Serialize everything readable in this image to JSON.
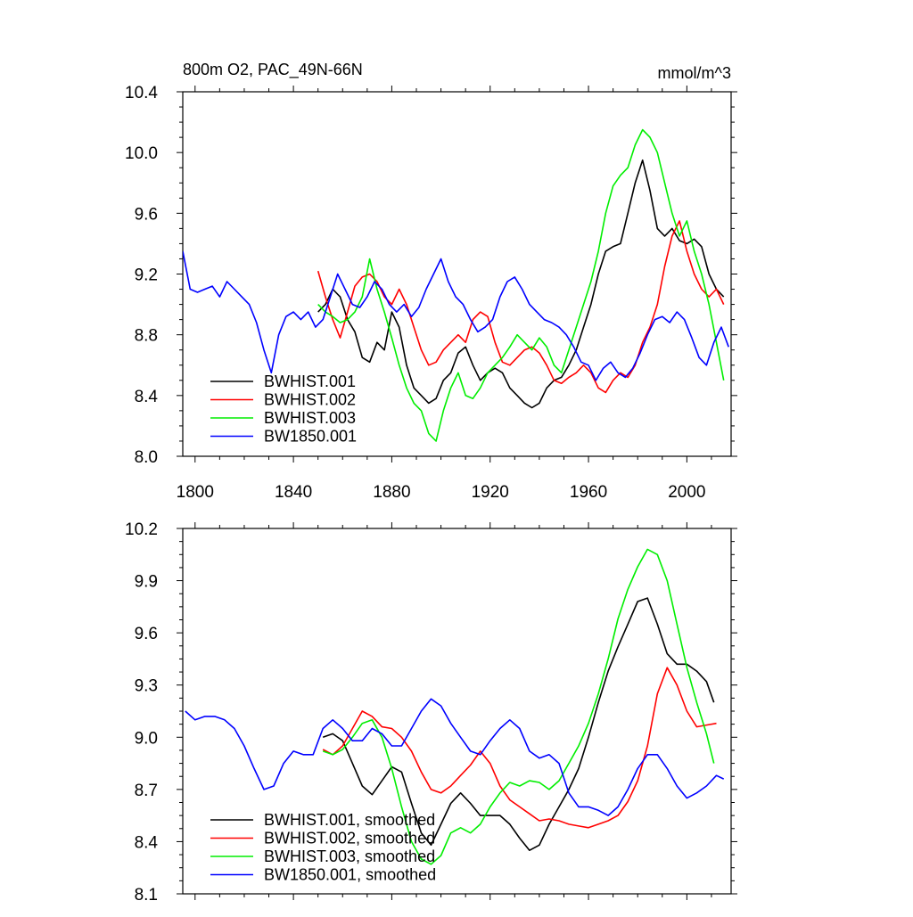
{
  "colors": {
    "BWHIST.001": "#000000",
    "BWHIST.002": "#ff0000",
    "BWHIST.003": "#00ee00",
    "BW1850.001": "#0000ff"
  },
  "chart_data": [
    {
      "type": "line",
      "title": "800m O2, PAC_49N-66N",
      "units": "mmol/m^3",
      "xlim": [
        1795,
        2018
      ],
      "ylim": [
        8.0,
        10.4
      ],
      "xticks": [
        1800,
        1840,
        1880,
        1920,
        1960,
        2000
      ],
      "xtick_labels": [
        "1800",
        "1840",
        "1880",
        "1920",
        "1960",
        "2000"
      ],
      "yticks": [
        8.0,
        8.4,
        8.8,
        9.2,
        9.6,
        10.0,
        10.4
      ],
      "ytick_labels": [
        "8.0",
        "8.4",
        "8.8",
        "9.2",
        "9.6",
        "10.0",
        "10.4"
      ],
      "legend_position": "bottom-left",
      "series": [
        {
          "name": "BWHIST.001",
          "color_key": "BWHIST.001",
          "x": [
            1850,
            1853,
            1856,
            1859,
            1862,
            1865,
            1868,
            1871,
            1874,
            1877,
            1880,
            1883,
            1886,
            1889,
            1892,
            1895,
            1898,
            1901,
            1904,
            1907,
            1910,
            1913,
            1916,
            1919,
            1922,
            1925,
            1928,
            1931,
            1934,
            1937,
            1940,
            1943,
            1946,
            1949,
            1952,
            1955,
            1958,
            1961,
            1964,
            1967,
            1970,
            1973,
            1976,
            1979,
            1982,
            1985,
            1988,
            1991,
            1994,
            1997,
            2000,
            2003,
            2006,
            2009,
            2012,
            2015
          ],
          "y": [
            8.95,
            9.0,
            9.1,
            9.05,
            8.9,
            8.82,
            8.65,
            8.62,
            8.75,
            8.7,
            8.95,
            8.85,
            8.6,
            8.45,
            8.4,
            8.35,
            8.38,
            8.5,
            8.55,
            8.68,
            8.72,
            8.6,
            8.5,
            8.55,
            8.58,
            8.55,
            8.45,
            8.4,
            8.35,
            8.32,
            8.35,
            8.45,
            8.5,
            8.52,
            8.6,
            8.7,
            8.85,
            9.0,
            9.2,
            9.35,
            9.38,
            9.4,
            9.6,
            9.8,
            9.95,
            9.75,
            9.5,
            9.45,
            9.5,
            9.42,
            9.4,
            9.43,
            9.38,
            9.2,
            9.1,
            9.05
          ]
        },
        {
          "name": "BWHIST.002",
          "color_key": "BWHIST.002",
          "x": [
            1850,
            1853,
            1856,
            1859,
            1862,
            1865,
            1868,
            1871,
            1874,
            1877,
            1880,
            1883,
            1886,
            1889,
            1892,
            1895,
            1898,
            1901,
            1904,
            1907,
            1910,
            1913,
            1916,
            1919,
            1922,
            1925,
            1928,
            1931,
            1934,
            1937,
            1940,
            1943,
            1946,
            1949,
            1952,
            1955,
            1958,
            1961,
            1964,
            1967,
            1970,
            1973,
            1976,
            1979,
            1982,
            1985,
            1988,
            1991,
            1994,
            1997,
            2000,
            2003,
            2006,
            2009,
            2012,
            2015
          ],
          "y": [
            9.22,
            9.05,
            8.9,
            8.78,
            8.95,
            9.12,
            9.18,
            9.2,
            9.15,
            9.05,
            9.0,
            9.1,
            9.0,
            8.85,
            8.7,
            8.6,
            8.62,
            8.7,
            8.75,
            8.8,
            8.75,
            8.9,
            8.95,
            8.92,
            8.75,
            8.62,
            8.6,
            8.65,
            8.7,
            8.72,
            8.68,
            8.6,
            8.5,
            8.48,
            8.52,
            8.55,
            8.6,
            8.55,
            8.45,
            8.42,
            8.5,
            8.55,
            8.52,
            8.6,
            8.75,
            8.85,
            9.0,
            9.25,
            9.45,
            9.55,
            9.35,
            9.2,
            9.1,
            9.05,
            9.1,
            9.0
          ]
        },
        {
          "name": "BWHIST.003",
          "color_key": "BWHIST.003",
          "x": [
            1850,
            1853,
            1856,
            1859,
            1862,
            1865,
            1868,
            1871,
            1874,
            1877,
            1880,
            1883,
            1886,
            1889,
            1892,
            1895,
            1898,
            1901,
            1904,
            1907,
            1910,
            1913,
            1916,
            1919,
            1922,
            1925,
            1928,
            1931,
            1934,
            1937,
            1940,
            1943,
            1946,
            1949,
            1952,
            1955,
            1958,
            1961,
            1964,
            1967,
            1970,
            1973,
            1976,
            1979,
            1982,
            1985,
            1988,
            1991,
            1994,
            1997,
            2000,
            2003,
            2006,
            2009,
            2012,
            2015
          ],
          "y": [
            9.0,
            8.95,
            8.92,
            8.88,
            8.9,
            8.95,
            9.05,
            9.3,
            9.1,
            8.95,
            8.78,
            8.6,
            8.45,
            8.35,
            8.3,
            8.15,
            8.1,
            8.3,
            8.45,
            8.55,
            8.4,
            8.38,
            8.45,
            8.55,
            8.6,
            8.65,
            8.72,
            8.8,
            8.75,
            8.7,
            8.78,
            8.72,
            8.6,
            8.55,
            8.7,
            8.85,
            9.0,
            9.15,
            9.35,
            9.6,
            9.78,
            9.85,
            9.9,
            10.05,
            10.15,
            10.1,
            10.0,
            9.8,
            9.6,
            9.45,
            9.55,
            9.35,
            9.2,
            9.0,
            8.75,
            8.5
          ]
        },
        {
          "name": "BW1850.001",
          "color_key": "BW1850.001",
          "x": [
            1795,
            1798,
            1801,
            1804,
            1807,
            1810,
            1813,
            1816,
            1819,
            1822,
            1825,
            1828,
            1831,
            1834,
            1837,
            1840,
            1843,
            1846,
            1849,
            1852,
            1855,
            1858,
            1861,
            1864,
            1867,
            1870,
            1873,
            1876,
            1879,
            1882,
            1885,
            1888,
            1891,
            1894,
            1897,
            1900,
            1903,
            1906,
            1909,
            1912,
            1915,
            1918,
            1921,
            1924,
            1927,
            1930,
            1933,
            1936,
            1939,
            1942,
            1945,
            1948,
            1951,
            1954,
            1957,
            1960,
            1963,
            1966,
            1969,
            1972,
            1975,
            1978,
            1981,
            1984,
            1987,
            1990,
            1993,
            1996,
            1999,
            2002,
            2005,
            2008,
            2011,
            2014,
            2017
          ],
          "y": [
            9.35,
            9.1,
            9.08,
            9.1,
            9.12,
            9.05,
            9.15,
            9.1,
            9.05,
            9.0,
            8.88,
            8.7,
            8.55,
            8.8,
            8.92,
            8.95,
            8.9,
            8.95,
            8.85,
            8.9,
            9.05,
            9.2,
            9.1,
            9.0,
            8.98,
            9.05,
            9.15,
            9.1,
            9.0,
            8.95,
            9.0,
            8.92,
            8.98,
            9.1,
            9.2,
            9.3,
            9.15,
            9.05,
            9.0,
            8.9,
            8.82,
            8.85,
            8.9,
            9.05,
            9.15,
            9.18,
            9.1,
            9.0,
            8.95,
            8.9,
            8.88,
            8.85,
            8.8,
            8.72,
            8.62,
            8.6,
            8.5,
            8.58,
            8.62,
            8.55,
            8.52,
            8.58,
            8.68,
            8.8,
            8.9,
            8.92,
            8.88,
            8.95,
            8.9,
            8.78,
            8.65,
            8.6,
            8.75,
            8.85,
            8.72
          ]
        }
      ]
    },
    {
      "type": "line",
      "title": "",
      "xlim": [
        1795,
        2018
      ],
      "ylim": [
        8.1,
        10.2
      ],
      "xticks": [
        1800,
        1840,
        1880,
        1920,
        1960,
        2000
      ],
      "yticks": [
        8.1,
        8.4,
        8.7,
        9.0,
        9.3,
        9.6,
        9.9,
        10.2
      ],
      "ytick_labels": [
        "8.1",
        "8.4",
        "8.7",
        "9.0",
        "9.3",
        "9.6",
        "9.9",
        "10.2"
      ],
      "legend_position": "bottom-left",
      "series": [
        {
          "name": "BWHIST.001, smoothed",
          "color_key": "BWHIST.001",
          "x": [
            1852,
            1856,
            1860,
            1864,
            1868,
            1872,
            1876,
            1880,
            1884,
            1888,
            1892,
            1896,
            1900,
            1904,
            1908,
            1912,
            1916,
            1920,
            1924,
            1928,
            1932,
            1936,
            1940,
            1944,
            1948,
            1952,
            1956,
            1960,
            1964,
            1968,
            1972,
            1976,
            1980,
            1984,
            1988,
            1992,
            1996,
            2000,
            2004,
            2008,
            2011
          ],
          "y": [
            9.0,
            9.02,
            8.98,
            8.85,
            8.72,
            8.67,
            8.75,
            8.83,
            8.8,
            8.62,
            8.45,
            8.38,
            8.5,
            8.62,
            8.68,
            8.62,
            8.55,
            8.55,
            8.55,
            8.5,
            8.42,
            8.35,
            8.38,
            8.5,
            8.6,
            8.7,
            8.82,
            9.0,
            9.2,
            9.38,
            9.52,
            9.65,
            9.78,
            9.8,
            9.65,
            9.48,
            9.42,
            9.42,
            9.38,
            9.32,
            9.2
          ]
        },
        {
          "name": "BWHIST.002, smoothed",
          "color_key": "BWHIST.002",
          "x": [
            1852,
            1856,
            1860,
            1864,
            1868,
            1872,
            1876,
            1880,
            1884,
            1888,
            1892,
            1896,
            1900,
            1904,
            1908,
            1912,
            1916,
            1920,
            1924,
            1928,
            1932,
            1936,
            1940,
            1944,
            1948,
            1952,
            1956,
            1960,
            1964,
            1968,
            1972,
            1976,
            1980,
            1984,
            1988,
            1992,
            1996,
            2000,
            2004,
            2008,
            2012
          ],
          "y": [
            8.93,
            8.9,
            8.95,
            9.05,
            9.15,
            9.12,
            9.06,
            9.05,
            9.0,
            8.92,
            8.8,
            8.7,
            8.68,
            8.72,
            8.78,
            8.84,
            8.92,
            8.85,
            8.72,
            8.64,
            8.6,
            8.56,
            8.52,
            8.53,
            8.52,
            8.5,
            8.49,
            8.48,
            8.5,
            8.52,
            8.55,
            8.63,
            8.75,
            8.95,
            9.25,
            9.4,
            9.3,
            9.15,
            9.06,
            9.07,
            9.08
          ]
        },
        {
          "name": "BWHIST.003, smoothed",
          "color_key": "BWHIST.003",
          "x": [
            1852,
            1856,
            1860,
            1864,
            1868,
            1872,
            1876,
            1880,
            1884,
            1888,
            1892,
            1896,
            1900,
            1904,
            1908,
            1912,
            1916,
            1920,
            1924,
            1928,
            1932,
            1936,
            1940,
            1944,
            1948,
            1952,
            1956,
            1960,
            1964,
            1968,
            1972,
            1976,
            1980,
            1984,
            1988,
            1992,
            1996,
            2000,
            2004,
            2008,
            2011
          ],
          "y": [
            8.92,
            8.9,
            8.93,
            9.0,
            9.08,
            9.1,
            9.0,
            8.82,
            8.6,
            8.4,
            8.3,
            8.27,
            8.32,
            8.45,
            8.48,
            8.45,
            8.5,
            8.6,
            8.68,
            8.74,
            8.72,
            8.75,
            8.74,
            8.7,
            8.75,
            8.85,
            8.95,
            9.08,
            9.25,
            9.45,
            9.68,
            9.85,
            9.98,
            10.08,
            10.05,
            9.9,
            9.65,
            9.4,
            9.2,
            9.02,
            8.85
          ]
        },
        {
          "name": "BW1850.001, smoothed",
          "color_key": "BW1850.001",
          "x": [
            1796,
            1800,
            1804,
            1808,
            1812,
            1816,
            1820,
            1824,
            1828,
            1832,
            1836,
            1840,
            1844,
            1848,
            1852,
            1856,
            1860,
            1864,
            1868,
            1872,
            1876,
            1880,
            1884,
            1888,
            1892,
            1896,
            1900,
            1904,
            1908,
            1912,
            1916,
            1920,
            1924,
            1928,
            1932,
            1936,
            1940,
            1944,
            1948,
            1952,
            1956,
            1960,
            1964,
            1968,
            1972,
            1976,
            1980,
            1984,
            1988,
            1992,
            1996,
            2000,
            2004,
            2008,
            2012,
            2015
          ],
          "y": [
            9.15,
            9.1,
            9.12,
            9.12,
            9.1,
            9.05,
            8.95,
            8.82,
            8.7,
            8.72,
            8.85,
            8.92,
            8.9,
            8.9,
            9.05,
            9.1,
            9.05,
            8.98,
            8.98,
            9.05,
            9.02,
            8.95,
            8.95,
            9.05,
            9.15,
            9.22,
            9.18,
            9.08,
            9.0,
            8.92,
            8.9,
            8.98,
            9.05,
            9.1,
            9.05,
            8.92,
            8.88,
            8.9,
            8.85,
            8.68,
            8.6,
            8.6,
            8.58,
            8.55,
            8.6,
            8.7,
            8.82,
            8.9,
            8.9,
            8.82,
            8.72,
            8.65,
            8.68,
            8.72,
            8.78,
            8.76
          ]
        }
      ]
    }
  ]
}
